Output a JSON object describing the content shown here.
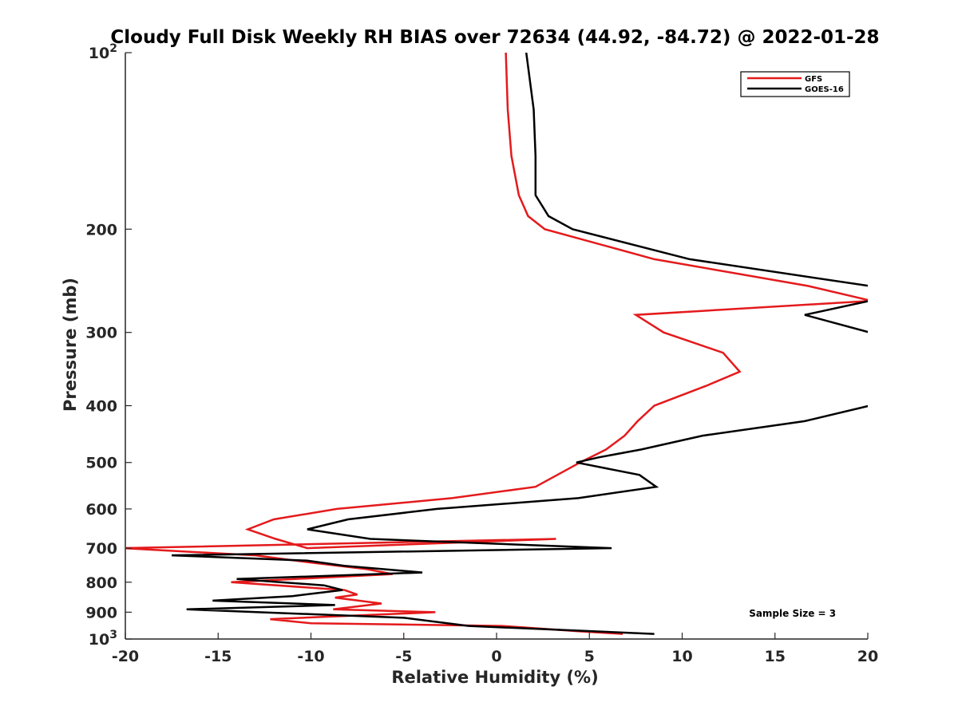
{
  "chart_data": {
    "type": "line",
    "title": "Cloudy Full Disk Weekly RH BIAS over 72634 (44.92, -84.72) @ 2022-01-28",
    "xlabel": "Relative Humidity (%)",
    "ylabel": "Pressure (mb)",
    "xlim": [
      -20,
      20
    ],
    "ylim": [
      100,
      1000
    ],
    "y_scale": "log",
    "y_reversed": true,
    "grid": false,
    "legend_position": "top-right",
    "x_ticks": [
      "-20",
      "-15",
      "-10",
      "-5",
      "0",
      "5",
      "10",
      "15",
      "20"
    ],
    "y_ticks": [
      {
        "value": 100,
        "base": "10",
        "exp": "2"
      },
      {
        "value": 200,
        "label": "200"
      },
      {
        "value": 300,
        "label": "300"
      },
      {
        "value": 400,
        "label": "400"
      },
      {
        "value": 500,
        "label": "500"
      },
      {
        "value": 600,
        "label": "600"
      },
      {
        "value": 700,
        "label": "700"
      },
      {
        "value": 800,
        "label": "800"
      },
      {
        "value": 900,
        "label": "900"
      },
      {
        "value": 1000,
        "base": "10",
        "exp": "3"
      }
    ],
    "series": [
      {
        "name": "GFS",
        "color": "#e41a1c",
        "points": [
          [
            0.5,
            100
          ],
          [
            0.6,
            125
          ],
          [
            0.8,
            150
          ],
          [
            1.2,
            175
          ],
          [
            1.7,
            190
          ],
          [
            2.6,
            200
          ],
          [
            8.5,
            225
          ],
          [
            16.8,
            250
          ],
          [
            20.2,
            265
          ],
          [
            7.5,
            280
          ],
          [
            9.0,
            300
          ],
          [
            12.2,
            325
          ],
          [
            13.1,
            350
          ],
          [
            11.3,
            370
          ],
          [
            8.5,
            400
          ],
          [
            7.6,
            425
          ],
          [
            6.9,
            450
          ],
          [
            5.9,
            475
          ],
          [
            4.5,
            500
          ],
          [
            2.1,
            550
          ],
          [
            -2.4,
            575
          ],
          [
            -8.6,
            600
          ],
          [
            -12.0,
            625
          ],
          [
            -13.4,
            650
          ],
          [
            -11.9,
            675
          ],
          [
            -10.2,
            700
          ],
          [
            3.2,
            675
          ],
          [
            -20.1,
            700
          ],
          [
            -13.0,
            720
          ],
          [
            -10.1,
            740
          ],
          [
            -7.0,
            760
          ],
          [
            -5.6,
            775
          ],
          [
            -14.3,
            800
          ],
          [
            -8.2,
            825
          ],
          [
            -7.5,
            840
          ],
          [
            -8.7,
            850
          ],
          [
            -6.2,
            870
          ],
          [
            -8.8,
            890
          ],
          [
            -3.3,
            900
          ],
          [
            -12.2,
            925
          ],
          [
            -10.0,
            940
          ],
          [
            0.3,
            950
          ],
          [
            4.4,
            970
          ],
          [
            6.8,
            980
          ]
        ]
      },
      {
        "name": "GOES-16",
        "color": "#000000",
        "points": [
          [
            1.6,
            100
          ],
          [
            2.0,
            125
          ],
          [
            2.1,
            150
          ],
          [
            2.1,
            175
          ],
          [
            2.8,
            190
          ],
          [
            4.1,
            200
          ],
          [
            10.4,
            225
          ],
          [
            20.1,
            250
          ],
          [
            20.1,
            265
          ],
          [
            16.6,
            280
          ],
          [
            20.1,
            300
          ],
          [
            20.1,
            400
          ],
          [
            16.6,
            425
          ],
          [
            11.1,
            450
          ],
          [
            7.8,
            475
          ],
          [
            5.5,
            490
          ],
          [
            4.3,
            500
          ],
          [
            7.7,
            525
          ],
          [
            8.6,
            550
          ],
          [
            4.4,
            575
          ],
          [
            -3.2,
            600
          ],
          [
            -8.0,
            625
          ],
          [
            -10.2,
            650
          ],
          [
            -6.8,
            675
          ],
          [
            6.2,
            700
          ],
          [
            -17.5,
            720
          ],
          [
            -10.2,
            735
          ],
          [
            -8.2,
            750
          ],
          [
            -4.0,
            770
          ],
          [
            -14.0,
            790
          ],
          [
            -9.3,
            810
          ],
          [
            -8.3,
            825
          ],
          [
            -11.0,
            845
          ],
          [
            -15.3,
            860
          ],
          [
            -8.7,
            875
          ],
          [
            -16.7,
            890
          ],
          [
            -5.0,
            920
          ],
          [
            -1.5,
            950
          ],
          [
            8.5,
            980
          ]
        ]
      }
    ],
    "annotations": [
      {
        "text": "Sample Size = 3",
        "x": 13.6,
        "y": 905
      }
    ]
  }
}
